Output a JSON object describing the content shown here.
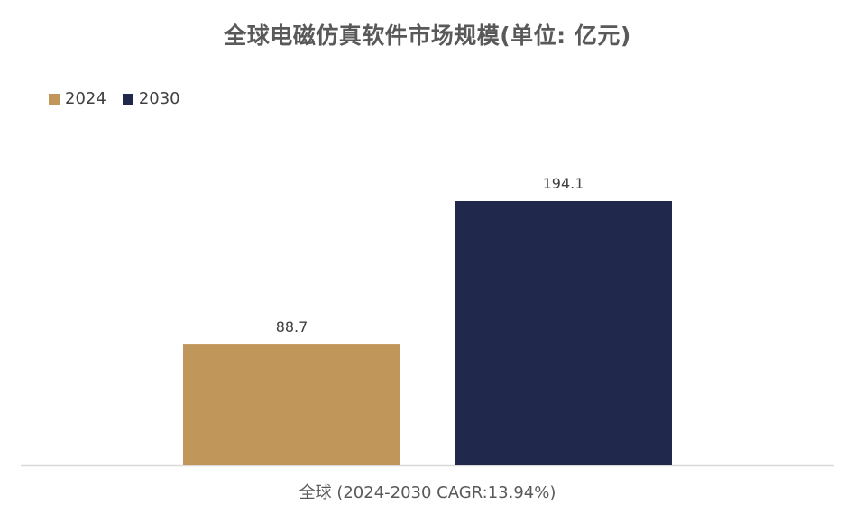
{
  "chart_data": {
    "type": "bar",
    "title": "全球电磁仿真软件市场规模(单位: 亿元)",
    "categories": [
      "全球 (2024-2030 CAGR:13.94%)"
    ],
    "series": [
      {
        "name": "2024",
        "values": [
          88.7
        ],
        "color": "#C1965A"
      },
      {
        "name": "2030",
        "values": [
          194.1
        ],
        "color": "#20284B"
      }
    ],
    "data_labels": [
      "88.7",
      "194.1"
    ],
    "xlabel": "",
    "ylabel": "",
    "ylim": [
      0,
      194.1
    ],
    "grid": false,
    "legend_position": "top-left",
    "axis_color": "#D9D9D9"
  }
}
